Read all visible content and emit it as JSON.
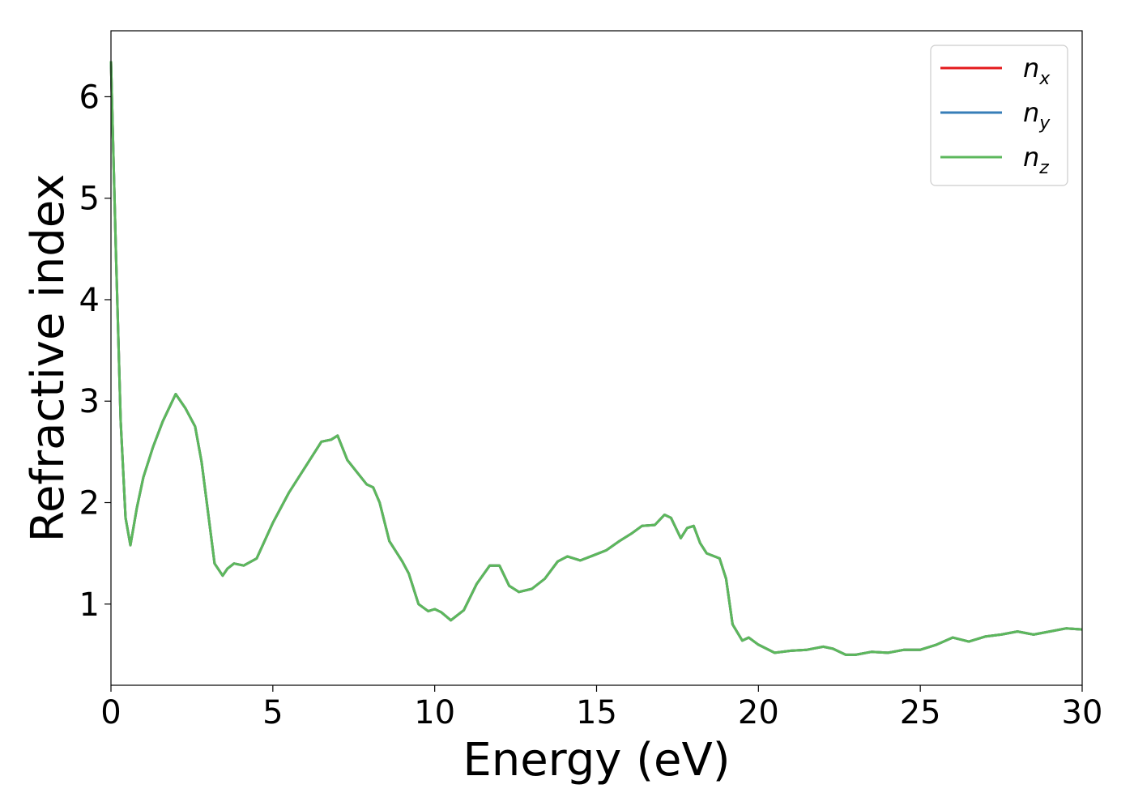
{
  "chart_data": {
    "type": "line",
    "title": "",
    "xlabel": "Energy (eV)",
    "ylabel": "Refractive index",
    "xlim": [
      0,
      30
    ],
    "ylim": [
      0.2,
      6.65
    ],
    "xticks": [
      "0",
      "5",
      "10",
      "15",
      "20",
      "25",
      "30"
    ],
    "yticks": [
      "1",
      "2",
      "3",
      "4",
      "5",
      "6"
    ],
    "grid": false,
    "legend_position": "top-right",
    "x": [
      0,
      0.15,
      0.3,
      0.45,
      0.6,
      0.8,
      1.0,
      1.3,
      1.6,
      2.0,
      2.3,
      2.6,
      2.8,
      3.0,
      3.2,
      3.45,
      3.6,
      3.8,
      4.1,
      4.5,
      5.0,
      5.5,
      6.0,
      6.5,
      6.8,
      7.0,
      7.3,
      7.6,
      7.9,
      8.1,
      8.3,
      8.6,
      9.0,
      9.2,
      9.5,
      9.8,
      10.0,
      10.2,
      10.5,
      10.9,
      11.3,
      11.7,
      12.0,
      12.3,
      12.6,
      13.0,
      13.4,
      13.8,
      14.1,
      14.5,
      14.9,
      15.3,
      15.7,
      16.1,
      16.4,
      16.8,
      17.1,
      17.3,
      17.6,
      17.8,
      18.0,
      18.2,
      18.4,
      18.8,
      19.0,
      19.2,
      19.5,
      19.7,
      20.0,
      20.5,
      21.0,
      21.5,
      22.0,
      22.3,
      22.7,
      23.0,
      23.5,
      24.0,
      24.5,
      25.0,
      25.5,
      26.0,
      26.5,
      27.0,
      27.5,
      28.0,
      28.5,
      29.0,
      29.5,
      30.0
    ],
    "series": [
      {
        "name": "n_x",
        "label_base": "n",
        "label_sub": "x",
        "color": "#e41a1c"
      },
      {
        "name": "n_y",
        "label_base": "n",
        "label_sub": "y",
        "color": "#377eb8"
      },
      {
        "name": "n_z",
        "label_base": "n",
        "label_sub": "z",
        "color": "#5cb85c"
      }
    ],
    "values": [
      6.35,
      4.5,
      2.8,
      1.85,
      1.58,
      1.95,
      2.25,
      2.55,
      2.8,
      3.07,
      2.93,
      2.75,
      2.4,
      1.9,
      1.4,
      1.28,
      1.35,
      1.4,
      1.38,
      1.45,
      1.8,
      2.1,
      2.35,
      2.6,
      2.62,
      2.66,
      2.42,
      2.3,
      2.18,
      2.15,
      2.0,
      1.62,
      1.42,
      1.3,
      1.0,
      0.93,
      0.95,
      0.92,
      0.84,
      0.94,
      1.2,
      1.38,
      1.38,
      1.18,
      1.12,
      1.15,
      1.25,
      1.42,
      1.47,
      1.43,
      1.48,
      1.53,
      1.62,
      1.7,
      1.77,
      1.78,
      1.88,
      1.85,
      1.65,
      1.75,
      1.77,
      1.6,
      1.5,
      1.45,
      1.25,
      0.8,
      0.64,
      0.67,
      0.6,
      0.52,
      0.54,
      0.55,
      0.58,
      0.56,
      0.5,
      0.5,
      0.53,
      0.52,
      0.55,
      0.55,
      0.6,
      0.67,
      0.63,
      0.68,
      0.7,
      0.73,
      0.7,
      0.73,
      0.76,
      0.75
    ]
  }
}
